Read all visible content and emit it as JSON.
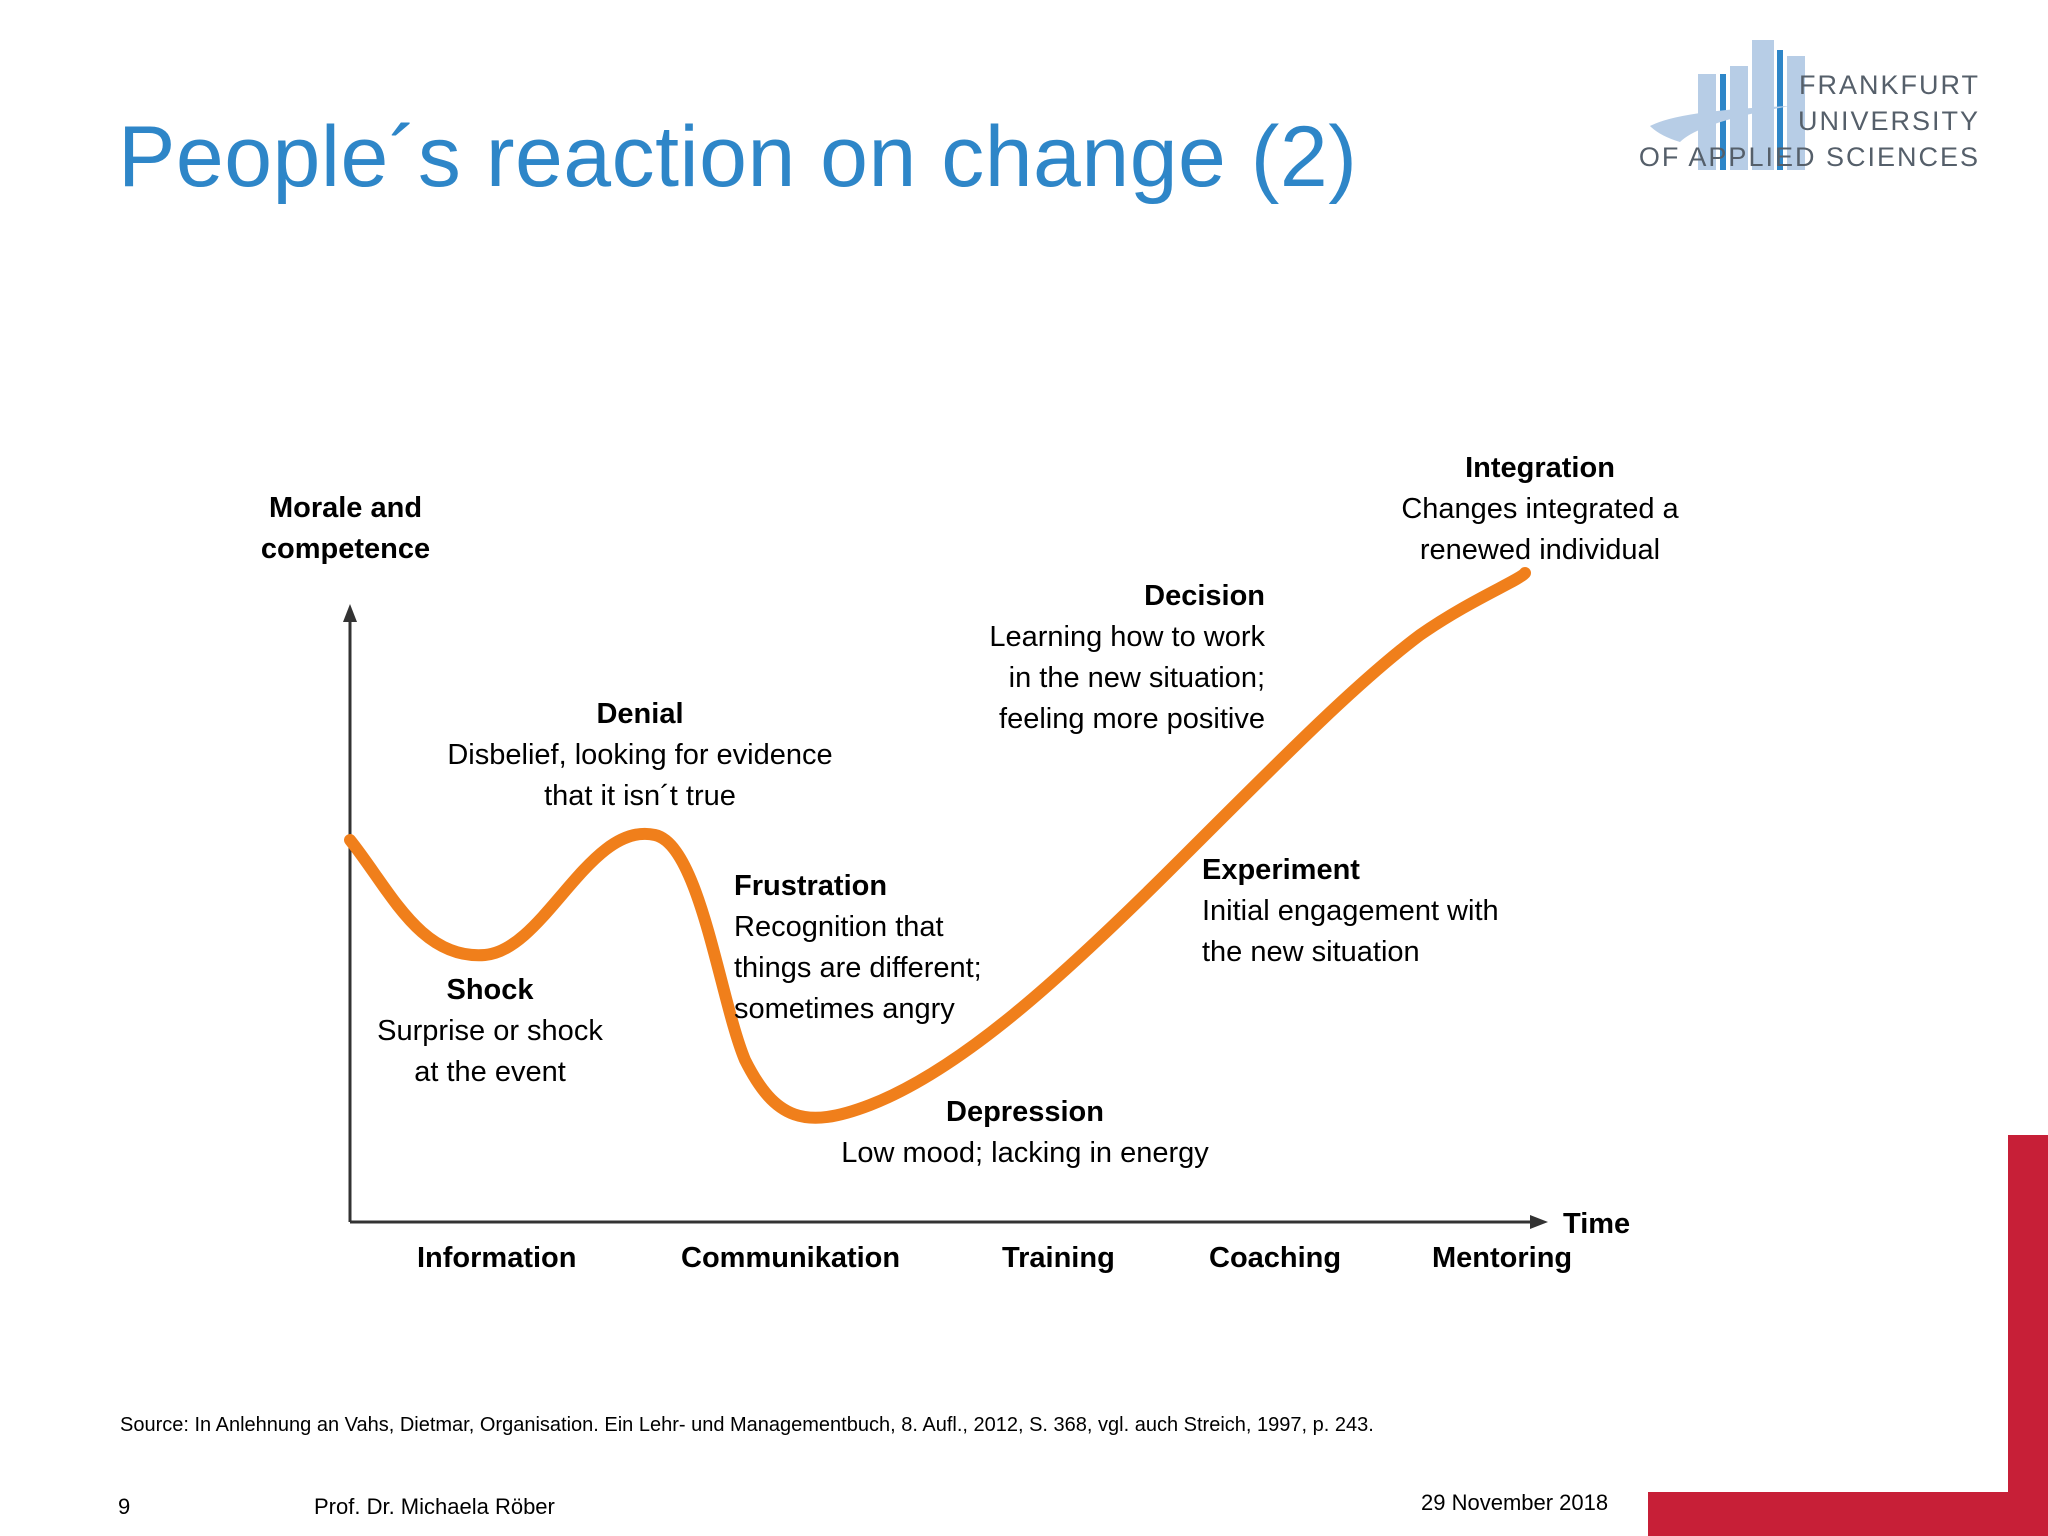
{
  "slide": {
    "title": "People´s reaction on change (2)",
    "page_number": "9",
    "author": "Prof. Dr. Michaela Röber",
    "date": "29 November 2018",
    "source": "Source: In Anlehnung an Vahs, Dietmar, Organisation. Ein Lehr- und Managementbuch, 8. Aufl., 2012, S. 368, vgl. auch Streich, 1997, p. 243."
  },
  "logo": {
    "line1": "FRANKFURT",
    "line2": "UNIVERSITY",
    "line3": "OF APPLIED SCIENCES",
    "color_light": "#b7cde6",
    "color_dark": "#555f6a"
  },
  "diagram": {
    "y_axis_label_line1": "Morale and",
    "y_axis_label_line2": "competence",
    "x_axis_label": "Time",
    "curve_color": "#f07f1b",
    "stages": {
      "denial": {
        "name": "Denial",
        "desc": "Disbelief, looking for evidence\nthat it isn´t true"
      },
      "shock": {
        "name": "Shock",
        "desc": "Surprise or shock\nat the event"
      },
      "frustration": {
        "name": "Frustration",
        "desc": "Recognition that\nthings are different;\nsometimes angry"
      },
      "depression": {
        "name": "Depression",
        "desc": "Low mood; lacking in energy"
      },
      "experiment": {
        "name": "Experiment",
        "desc": "Initial engagement with\nthe new situation"
      },
      "decision": {
        "name": "Decision",
        "desc": "Learning how to work\nin the new situation;\nfeeling more positive"
      },
      "integration": {
        "name": "Integration",
        "desc": "Changes integrated a\nrenewed individual"
      }
    },
    "phases": {
      "information": "Information",
      "communikation": "Communikation",
      "training": "Training",
      "coaching": "Coaching",
      "mentoring": "Mentoring"
    }
  },
  "accent_color": "#c71f37",
  "title_color": "#2e86c8"
}
